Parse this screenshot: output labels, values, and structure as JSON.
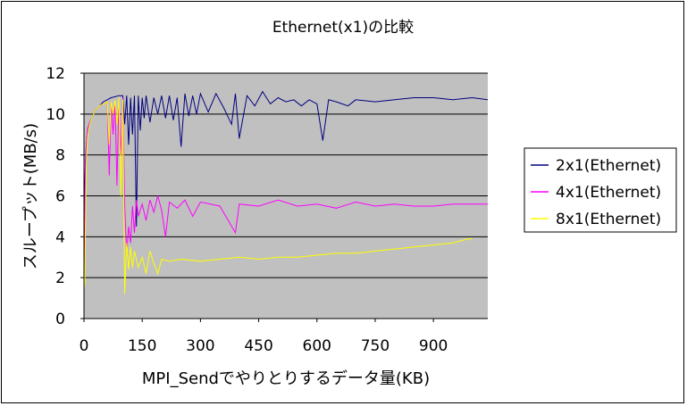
{
  "chart_data": {
    "type": "line",
    "title": "Ethernet(x1)の比較",
    "xlabel": "MPI_Sendでやりとりするデータ量(KB)",
    "ylabel": "スループット(MB/s)",
    "xlim": [
      0,
      1040
    ],
    "ylim": [
      0,
      12
    ],
    "xticks": [
      0,
      150,
      300,
      450,
      600,
      750,
      900
    ],
    "yticks": [
      0,
      2,
      4,
      6,
      8,
      10,
      12
    ],
    "grid": "horizontal",
    "plot_background": "#c0c0c0",
    "legend_position": "right",
    "series": [
      {
        "name": "2x1(Ethernet)",
        "color": "#000080",
        "x": [
          0,
          2,
          4,
          6,
          8,
          10,
          15,
          20,
          25,
          30,
          40,
          50,
          60,
          70,
          80,
          90,
          100,
          105,
          110,
          115,
          120,
          125,
          130,
          135,
          140,
          145,
          150,
          155,
          160,
          170,
          180,
          190,
          200,
          210,
          220,
          230,
          240,
          250,
          260,
          270,
          280,
          290,
          300,
          320,
          340,
          360,
          380,
          390,
          400,
          420,
          440,
          460,
          480,
          500,
          520,
          540,
          560,
          580,
          600,
          615,
          630,
          650,
          680,
          700,
          750,
          800,
          850,
          900,
          950,
          1000,
          1040
        ],
        "values": [
          1.5,
          6.5,
          7.8,
          8.5,
          9.0,
          9.3,
          9.6,
          9.8,
          10.0,
          10.2,
          10.4,
          10.6,
          10.7,
          10.8,
          10.85,
          10.9,
          10.9,
          9.5,
          10.9,
          8.5,
          10.8,
          9.0,
          10.9,
          4.5,
          10.9,
          9.2,
          10.8,
          9.8,
          10.9,
          9.6,
          10.8,
          10.0,
          10.9,
          9.8,
          10.9,
          9.7,
          10.8,
          8.4,
          11.0,
          9.9,
          10.9,
          10.0,
          11.0,
          10.1,
          11.0,
          10.3,
          9.5,
          11.0,
          8.8,
          10.9,
          10.4,
          11.1,
          10.5,
          10.8,
          10.6,
          10.7,
          10.4,
          10.7,
          10.5,
          8.7,
          10.7,
          10.6,
          10.4,
          10.7,
          10.6,
          10.7,
          10.8,
          10.8,
          10.7,
          10.8,
          10.7
        ]
      },
      {
        "name": "4x1(Ethernet)",
        "color": "#ff00ff",
        "x": [
          0,
          2,
          4,
          6,
          8,
          10,
          15,
          20,
          25,
          30,
          40,
          50,
          60,
          65,
          70,
          75,
          80,
          85,
          90,
          95,
          100,
          105,
          110,
          115,
          120,
          125,
          130,
          135,
          140,
          150,
          160,
          170,
          180,
          190,
          200,
          210,
          220,
          240,
          260,
          280,
          300,
          350,
          390,
          400,
          450,
          500,
          550,
          600,
          650,
          700,
          750,
          800,
          850,
          900,
          950,
          1000,
          1040
        ],
        "values": [
          1.5,
          4.8,
          7.5,
          8.5,
          9.0,
          9.3,
          9.6,
          9.8,
          10.0,
          10.2,
          10.4,
          10.5,
          10.6,
          7.0,
          10.6,
          9.0,
          10.7,
          6.5,
          10.7,
          8.0,
          10.8,
          5.5,
          3.2,
          4.5,
          3.7,
          5.5,
          4.2,
          5.8,
          5.0,
          5.6,
          4.8,
          5.8,
          5.2,
          6.0,
          5.3,
          4.0,
          5.7,
          5.4,
          5.8,
          5.0,
          5.7,
          5.5,
          4.2,
          5.6,
          5.5,
          5.8,
          5.5,
          5.6,
          5.4,
          5.7,
          5.5,
          5.6,
          5.5,
          5.5,
          5.6,
          5.6,
          5.6
        ]
      },
      {
        "name": "8x1(Ethernet)",
        "color": "#ffff00",
        "x": [
          0,
          2,
          4,
          6,
          8,
          10,
          15,
          20,
          25,
          30,
          40,
          50,
          60,
          65,
          70,
          75,
          80,
          85,
          90,
          95,
          100,
          105,
          110,
          115,
          120,
          125,
          130,
          140,
          150,
          160,
          170,
          180,
          190,
          200,
          220,
          250,
          300,
          350,
          400,
          450,
          500,
          550,
          600,
          650,
          700,
          750,
          800,
          850,
          900,
          950,
          990,
          1000
        ],
        "values": [
          1.5,
          1.7,
          4.5,
          7.5,
          8.5,
          9.0,
          9.5,
          9.8,
          10.0,
          10.2,
          10.4,
          10.5,
          10.6,
          8.5,
          10.6,
          10.0,
          10.7,
          9.5,
          10.8,
          6.0,
          10.7,
          1.2,
          3.7,
          2.4,
          3.5,
          2.5,
          3.3,
          2.5,
          3.0,
          2.2,
          3.3,
          2.7,
          2.2,
          2.9,
          2.8,
          2.9,
          2.8,
          2.9,
          3.0,
          2.9,
          3.0,
          3.0,
          3.1,
          3.2,
          3.2,
          3.3,
          3.4,
          3.5,
          3.6,
          3.7,
          3.9,
          3.9
        ]
      }
    ]
  }
}
